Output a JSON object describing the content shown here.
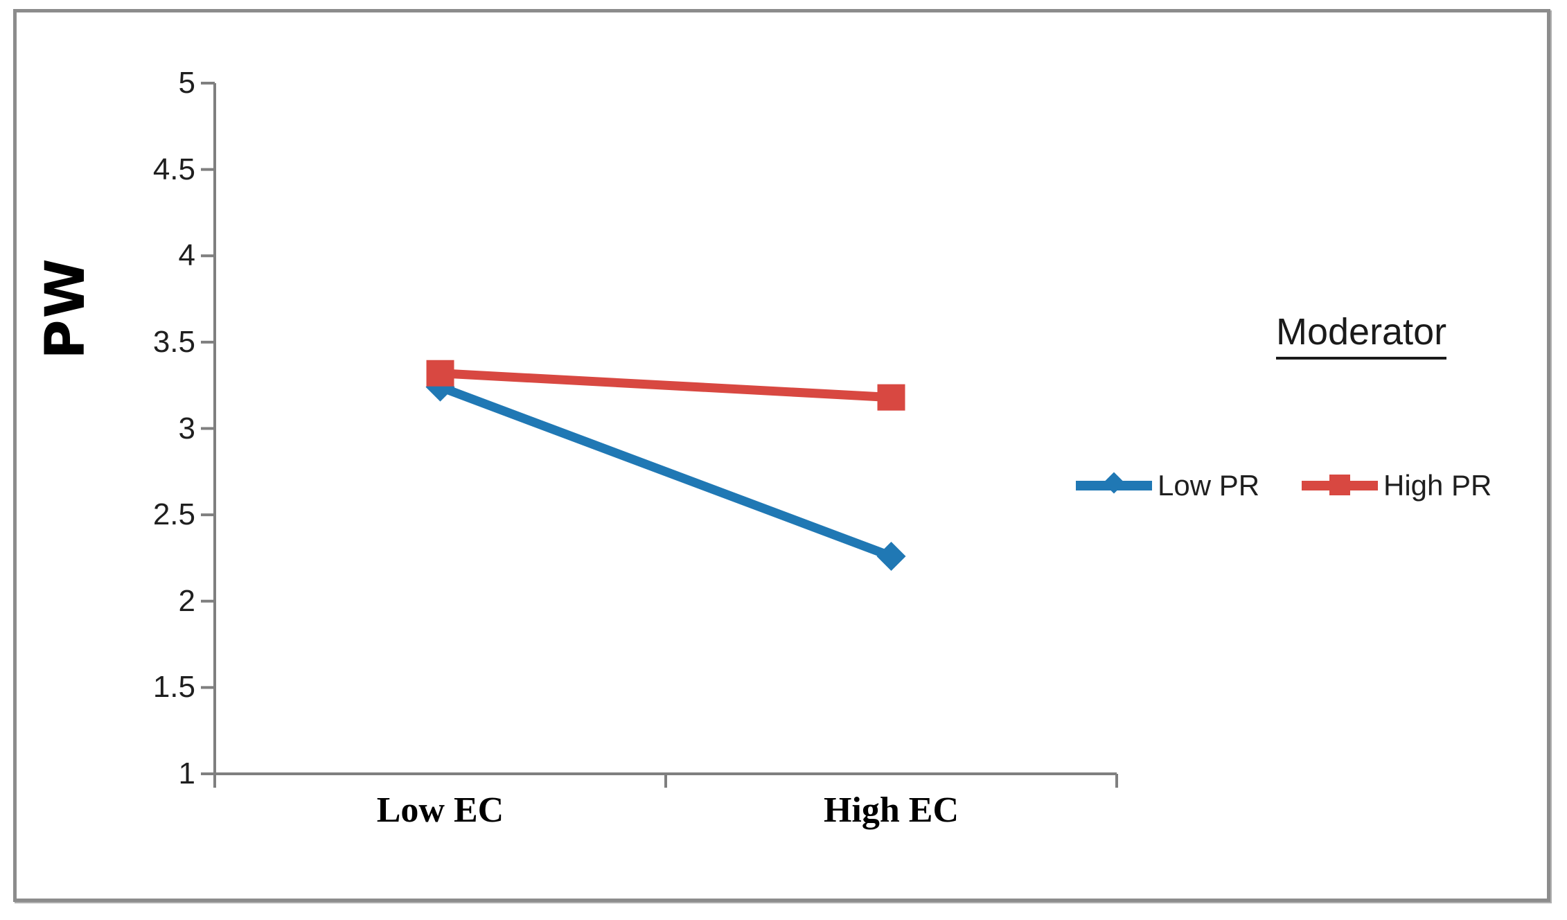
{
  "chart_data": {
    "type": "line",
    "title": "",
    "categories": [
      "Low EC",
      "High EC"
    ],
    "series": [
      {
        "name": "Low PR",
        "color": "#2078b4",
        "marker": "diamond",
        "values": [
          3.24,
          2.26
        ]
      },
      {
        "name": "High PR",
        "color": "#d84841",
        "marker": "square",
        "values": [
          3.32,
          3.18
        ]
      }
    ],
    "xlabel": "",
    "ylabel": "PW",
    "ylim": [
      1,
      5
    ],
    "yticks": [
      1,
      1.5,
      2,
      2.5,
      3,
      3.5,
      4,
      4.5,
      5
    ],
    "grid": false,
    "legend_title": "Moderator",
    "legend_position": "right-middle",
    "axis_color": "#7f7f7f",
    "tick_label_color": "#1f1f1f",
    "frame_border_color": "#8c8c8c"
  }
}
